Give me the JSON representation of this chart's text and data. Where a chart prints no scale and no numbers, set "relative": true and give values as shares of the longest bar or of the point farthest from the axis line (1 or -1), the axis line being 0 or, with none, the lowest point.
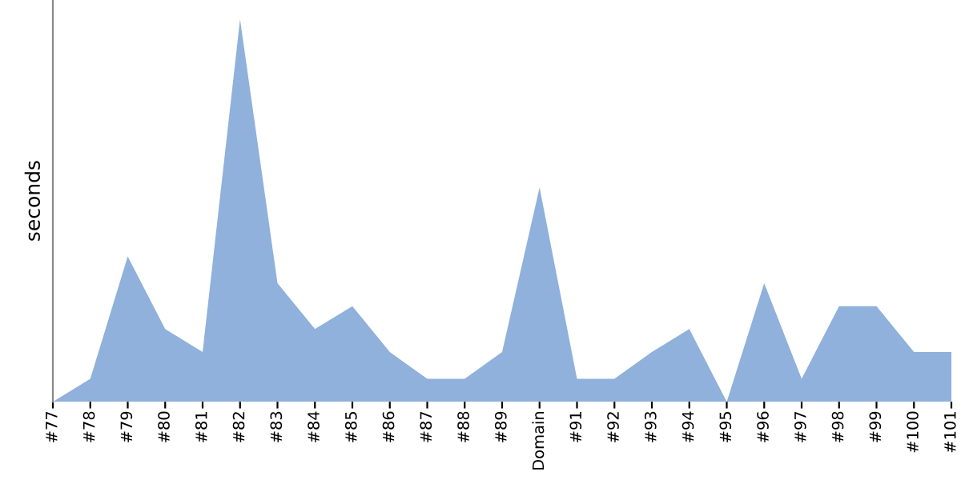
{
  "chart_data": {
    "type": "area",
    "ylabel": "seconds",
    "relative": true,
    "categories": [
      "#77",
      "#78",
      "#79",
      "#80",
      "#81",
      "#82",
      "#83",
      "#84",
      "#85",
      "#86",
      "#87",
      "#88",
      "#89",
      "Domain",
      "#91",
      "#92",
      "#93",
      "#94",
      "#95",
      "#96",
      "#97",
      "#98",
      "#99",
      "#100",
      "#101"
    ],
    "series": [
      {
        "color": "#8fb1db",
        "values": [
          0,
          0.06,
          0.38,
          0.19,
          0.13,
          1,
          0.31,
          0.19,
          0.25,
          0.13,
          0.06,
          0.06,
          0.13,
          0.56,
          0.06,
          0.06,
          0.13,
          0.19,
          0,
          0.31,
          0.06,
          0.25,
          0.25,
          0.13,
          0.13
        ]
      }
    ]
  }
}
